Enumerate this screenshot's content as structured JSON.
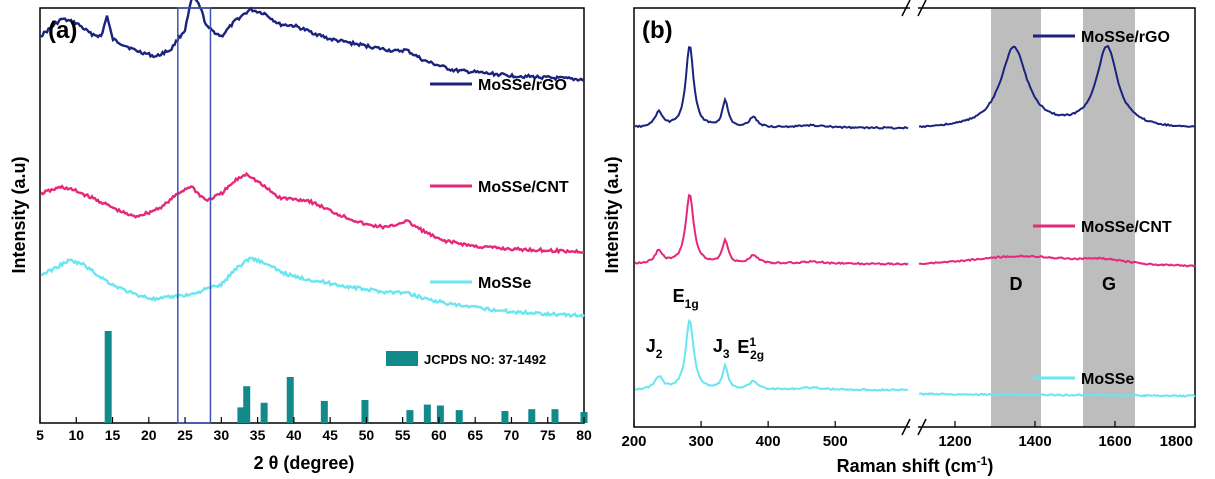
{
  "chart_data": [
    {
      "panel": "(a)",
      "type": "line",
      "xlabel": "2 θ (degree)",
      "ylabel": "Intensity (a.u)",
      "xlim": [
        5,
        80
      ],
      "x_ticks": [
        5,
        10,
        15,
        20,
        25,
        30,
        35,
        40,
        45,
        50,
        55,
        60,
        65,
        70,
        75,
        80
      ],
      "y_ticks_shown": false,
      "highlight_box_x": [
        24,
        28.5
      ],
      "series": [
        {
          "name": "MoSSe/rGO",
          "color": "#1a237e",
          "x": [
            5,
            8,
            10,
            12,
            13.5,
            14.2,
            15,
            18,
            21,
            22,
            23,
            24,
            25,
            26,
            27,
            28,
            30,
            32,
            34,
            36,
            38,
            40,
            45,
            50,
            54,
            55.5,
            58,
            62,
            70,
            80
          ],
          "y": [
            0.9,
            1.03,
            1.0,
            0.92,
            0.9,
            1.06,
            0.88,
            0.8,
            0.75,
            0.78,
            0.8,
            0.88,
            0.95,
            1.2,
            1.13,
            0.97,
            0.9,
            1.02,
            1.1,
            1.07,
            0.99,
            0.98,
            0.88,
            0.83,
            0.79,
            0.8,
            0.72,
            0.65,
            0.61,
            0.58
          ]
        },
        {
          "name": "MoSSe/CNT",
          "color": "#e6287a",
          "x": [
            5,
            8,
            10,
            13,
            16,
            18,
            20,
            22,
            24,
            25.5,
            26,
            27,
            28,
            30,
            32,
            33.5,
            36,
            38,
            42,
            46,
            50,
            53,
            55.5,
            57,
            60,
            65,
            70,
            75,
            80
          ],
          "y": [
            0.55,
            0.6,
            0.57,
            0.5,
            0.42,
            0.38,
            0.41,
            0.46,
            0.55,
            0.6,
            0.6,
            0.54,
            0.5,
            0.55,
            0.65,
            0.7,
            0.6,
            0.52,
            0.5,
            0.4,
            0.32,
            0.3,
            0.35,
            0.3,
            0.21,
            0.16,
            0.14,
            0.13,
            0.12
          ]
        },
        {
          "name": "MoSSe",
          "color": "#69e6f0",
          "x": [
            5,
            7,
            9,
            11,
            13,
            15,
            18,
            21,
            23,
            26,
            28,
            30,
            32,
            34,
            36,
            38,
            40,
            44,
            48,
            52,
            55.5,
            58,
            62,
            70,
            80
          ],
          "y": [
            0.22,
            0.27,
            0.33,
            0.3,
            0.22,
            0.15,
            0.08,
            0.04,
            0.06,
            0.08,
            0.12,
            0.15,
            0.27,
            0.35,
            0.31,
            0.25,
            0.21,
            0.17,
            0.13,
            0.1,
            0.09,
            0.05,
            0.0,
            -0.05,
            -0.08
          ]
        }
      ],
      "reference_legend": "JCPDS NO: 37-1492",
      "reference_color": "#138a8a",
      "reference_bars": [
        {
          "x": 14.4,
          "h": 1.0
        },
        {
          "x": 32.7,
          "h": 0.17
        },
        {
          "x": 33.5,
          "h": 0.4
        },
        {
          "x": 35.9,
          "h": 0.22
        },
        {
          "x": 39.5,
          "h": 0.5
        },
        {
          "x": 44.2,
          "h": 0.24
        },
        {
          "x": 49.8,
          "h": 0.25
        },
        {
          "x": 56.0,
          "h": 0.14
        },
        {
          "x": 58.4,
          "h": 0.2
        },
        {
          "x": 60.2,
          "h": 0.19
        },
        {
          "x": 62.8,
          "h": 0.14
        },
        {
          "x": 69.1,
          "h": 0.13
        },
        {
          "x": 72.8,
          "h": 0.15
        },
        {
          "x": 76.0,
          "h": 0.15
        },
        {
          "x": 80.0,
          "h": 0.12
        }
      ]
    },
    {
      "panel": "(b)",
      "type": "line",
      "xlabel": "Raman shift (cm⁻¹)",
      "ylabel": "Intensity (a.u)",
      "x_ticks_left": [
        200,
        300,
        400,
        500
      ],
      "x_ticks_right": [
        1200,
        1400,
        1600,
        1800
      ],
      "xlim_left": [
        200,
        610
      ],
      "xlim_right": [
        1110,
        1800
      ],
      "axis_break": true,
      "bands": [
        {
          "label": "D",
          "x": [
            1290,
            1415
          ]
        },
        {
          "label": "G",
          "x": [
            1520,
            1650
          ]
        }
      ],
      "peak_labels": [
        {
          "label": "J",
          "sub": "2",
          "x": 236
        },
        {
          "label": "E",
          "sub": "1g",
          "x": 283
        },
        {
          "label": "J",
          "sub": "3",
          "x": 336
        },
        {
          "label": "E",
          "sup": "1",
          "sub": "2g",
          "x": 380
        }
      ],
      "series": [
        {
          "name": "MoSSe/rGO",
          "color": "#1a237e",
          "offset": 2.0,
          "scale": 1.0,
          "carbon": 1.0
        },
        {
          "name": "MoSSe/CNT",
          "color": "#e6287a",
          "offset": 1.0,
          "scale": 0.85,
          "carbon": 0.12
        },
        {
          "name": "MoSSe",
          "color": "#69e6f0",
          "offset": 0.0,
          "scale": 0.85,
          "carbon": 0.0
        }
      ]
    }
  ]
}
